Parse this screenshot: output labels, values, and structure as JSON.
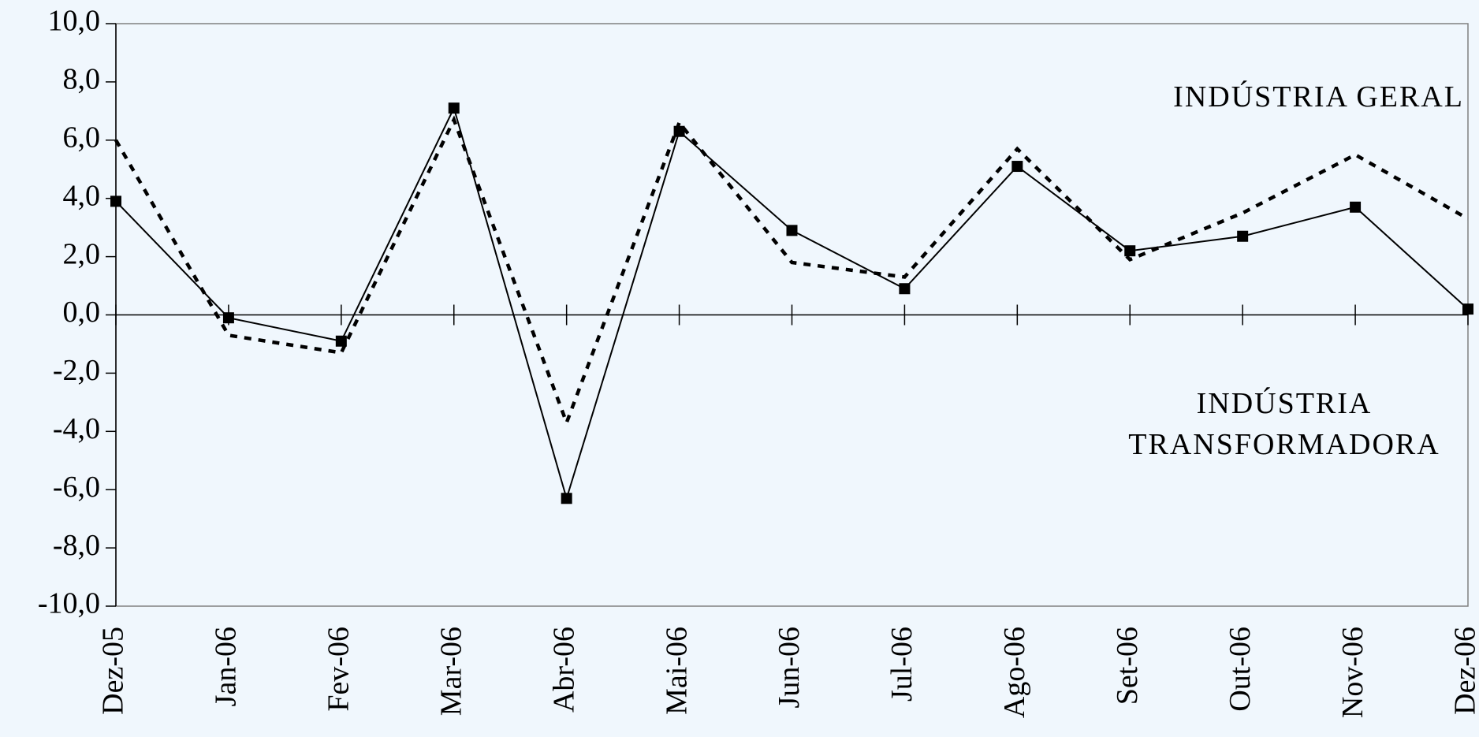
{
  "chart_data": {
    "type": "line",
    "categories": [
      "Dez-05",
      "Jan-06",
      "Fev-06",
      "Mar-06",
      "Abr-06",
      "Mai-06",
      "Jun-06",
      "Jul-06",
      "Ago-06",
      "Set-06",
      "Out-06",
      "Nov-06",
      "Dez-06"
    ],
    "series": [
      {
        "name": "INDÚSTRIA GERAL",
        "color": "#000000",
        "style": "dotted",
        "values": [
          6.0,
          -0.7,
          -1.3,
          6.7,
          -3.7,
          6.6,
          1.8,
          1.3,
          5.7,
          1.9,
          3.5,
          5.5,
          3.3
        ]
      },
      {
        "name": "INDÚSTRIA TRANSFORMADORA",
        "color": "#000000",
        "style": "solid",
        "marker": "square",
        "values": [
          3.9,
          -0.1,
          -0.9,
          7.1,
          -6.3,
          6.3,
          2.9,
          0.9,
          5.1,
          2.2,
          2.7,
          3.7,
          0.2
        ]
      }
    ],
    "ylim": [
      -10,
      10
    ],
    "yticks": [
      {
        "value": -10,
        "label": "-10,0"
      },
      {
        "value": -8,
        "label": "-8,0"
      },
      {
        "value": -6,
        "label": "-6,0"
      },
      {
        "value": -4,
        "label": "-4,0"
      },
      {
        "value": -2,
        "label": "-2,0"
      },
      {
        "value": 0,
        "label": "0,0"
      },
      {
        "value": 2,
        "label": "2,0"
      },
      {
        "value": 4,
        "label": "4,0"
      },
      {
        "value": 6,
        "label": "6,0"
      },
      {
        "value": 8,
        "label": "8,0"
      },
      {
        "value": 10,
        "label": "10,0"
      }
    ],
    "grid": false
  }
}
